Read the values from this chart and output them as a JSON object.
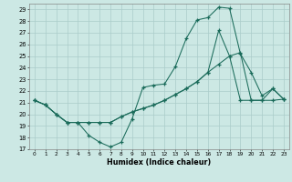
{
  "xlabel": "Humidex (Indice chaleur)",
  "bg_color": "#cce8e4",
  "grid_color": "#aaccca",
  "line_color": "#1a6b5a",
  "xlim": [
    -0.5,
    23.5
  ],
  "ylim": [
    17,
    29.5
  ],
  "yticks": [
    17,
    18,
    19,
    20,
    21,
    22,
    23,
    24,
    25,
    26,
    27,
    28,
    29
  ],
  "xticks": [
    0,
    1,
    2,
    3,
    4,
    5,
    6,
    7,
    8,
    9,
    10,
    11,
    12,
    13,
    14,
    15,
    16,
    17,
    18,
    19,
    20,
    21,
    22,
    23
  ],
  "line1_x": [
    0,
    1,
    2,
    3,
    4,
    5,
    6,
    7,
    8,
    9,
    10,
    11,
    12,
    13,
    14,
    15,
    16,
    17,
    18,
    19,
    20,
    21,
    22,
    23
  ],
  "line1_y": [
    21.2,
    20.8,
    20.0,
    19.3,
    19.3,
    18.2,
    17.6,
    17.2,
    17.6,
    19.6,
    22.3,
    22.5,
    22.6,
    24.1,
    26.5,
    28.1,
    28.3,
    29.2,
    29.1,
    25.2,
    23.6,
    21.6,
    22.2,
    21.3
  ],
  "line2_x": [
    0,
    1,
    2,
    3,
    4,
    5,
    6,
    7,
    8,
    9,
    10,
    11,
    12,
    13,
    14,
    15,
    16,
    17,
    18,
    19,
    20,
    21,
    22,
    23
  ],
  "line2_y": [
    21.2,
    20.8,
    20.0,
    19.3,
    19.3,
    19.3,
    19.3,
    19.3,
    19.8,
    20.2,
    20.5,
    20.8,
    21.2,
    21.7,
    22.2,
    22.8,
    23.6,
    24.3,
    25.0,
    25.3,
    21.2,
    21.2,
    21.2,
    21.3
  ],
  "line3_x": [
    0,
    1,
    2,
    3,
    4,
    5,
    6,
    7,
    8,
    9,
    10,
    11,
    12,
    13,
    14,
    15,
    16,
    17,
    18,
    19,
    20,
    21,
    22,
    23
  ],
  "line3_y": [
    21.2,
    20.8,
    20.0,
    19.3,
    19.3,
    19.3,
    19.3,
    19.3,
    19.8,
    20.2,
    20.5,
    20.8,
    21.2,
    21.7,
    22.2,
    22.8,
    23.6,
    27.2,
    25.0,
    21.2,
    21.2,
    21.2,
    22.2,
    21.3
  ]
}
